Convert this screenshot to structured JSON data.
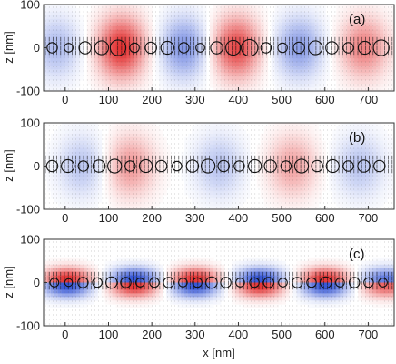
{
  "chart_data": [
    {
      "type": "heatmap",
      "panel_label": "(a)",
      "ylabel": "z [nm]",
      "xlabel": "",
      "xlim": [
        -50,
        760
      ],
      "ylim": [
        -100,
        100
      ],
      "xticks": [
        0,
        100,
        200,
        300,
        400,
        500,
        600,
        700
      ],
      "yticks": [
        100,
        0,
        -100
      ],
      "colormap": [
        "#1a3fd0",
        "#ffffff",
        "#e01a1a"
      ],
      "field_profile": "wide",
      "field_lobes": [
        {
          "x": -20,
          "sign": -1,
          "amp": 0.35
        },
        {
          "x": 130,
          "sign": 1,
          "amp": 0.9
        },
        {
          "x": 275,
          "sign": -1,
          "amp": 0.55
        },
        {
          "x": 395,
          "sign": 1,
          "amp": 0.8
        },
        {
          "x": 540,
          "sign": -1,
          "amp": 0.5
        },
        {
          "x": 690,
          "sign": 1,
          "amp": 0.55
        }
      ],
      "particles": {
        "x_start": -30,
        "spacing": 38,
        "count": 21,
        "radii": [
          12,
          10,
          14,
          16,
          18,
          11,
          13,
          15,
          12,
          10,
          14,
          17,
          19,
          12,
          11,
          13,
          16,
          14,
          12,
          15,
          18
        ]
      }
    },
    {
      "type": "heatmap",
      "panel_label": "(b)",
      "ylabel": "z [nm]",
      "xlabel": "",
      "xlim": [
        -50,
        760
      ],
      "ylim": [
        -100,
        100
      ],
      "xticks": [
        0,
        100,
        200,
        300,
        400,
        500,
        600,
        700
      ],
      "yticks": [
        100,
        0,
        -100
      ],
      "colormap": [
        "#1a3fd0",
        "#ffffff",
        "#e01a1a"
      ],
      "field_profile": "wide",
      "field_lobes": [
        {
          "x": 40,
          "sign": -1,
          "amp": 0.3
        },
        {
          "x": 150,
          "sign": 1,
          "amp": 0.45
        },
        {
          "x": 355,
          "sign": -1,
          "amp": 0.3
        },
        {
          "x": 525,
          "sign": 1,
          "amp": 0.4
        },
        {
          "x": 680,
          "sign": -1,
          "amp": 0.3
        }
      ],
      "particles": {
        "x_start": -30,
        "spacing": 36,
        "count": 22,
        "radii": [
          13,
          15,
          12,
          14,
          16,
          12,
          15,
          13,
          11,
          14,
          16,
          13,
          12,
          15,
          14,
          12,
          16,
          13,
          15,
          12,
          14,
          13
        ]
      }
    },
    {
      "type": "heatmap",
      "panel_label": "(c)",
      "ylabel": "z [nm]",
      "xlabel": "x [nm]",
      "xlim": [
        -50,
        760
      ],
      "ylim": [
        -100,
        100
      ],
      "xticks": [
        0,
        100,
        200,
        300,
        400,
        500,
        600,
        700
      ],
      "yticks": [
        100,
        0,
        -100
      ],
      "colormap": [
        "#1a3fd0",
        "#ffffff",
        "#e01a1a"
      ],
      "field_profile": "antisymmetric",
      "field_lobes": [
        {
          "x": 5,
          "sign": 1,
          "amp": 0.9
        },
        {
          "x": 160,
          "sign": -1,
          "amp": 0.9
        },
        {
          "x": 300,
          "sign": 1,
          "amp": 0.9
        },
        {
          "x": 450,
          "sign": -1,
          "amp": 0.9
        },
        {
          "x": 600,
          "sign": 1,
          "amp": 0.9
        },
        {
          "x": 740,
          "sign": -1,
          "amp": 0.7
        }
      ],
      "particles": {
        "x_start": -25,
        "spacing": 33,
        "count": 24,
        "radii": [
          10,
          9,
          12,
          11,
          13,
          12,
          10,
          11,
          12,
          10,
          11,
          13,
          12,
          10,
          11,
          12,
          10,
          12,
          11,
          13,
          10,
          12,
          11,
          10
        ]
      }
    }
  ]
}
